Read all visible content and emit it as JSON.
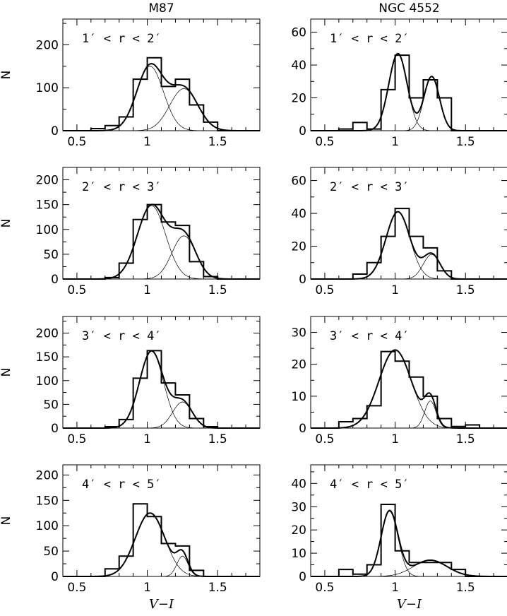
{
  "chart_data": [
    {
      "type": "histogram",
      "title": "M87",
      "annotation": "1′ < r < 2′",
      "xlabel": "",
      "ylabel": "N",
      "xlim": [
        0.4,
        1.8
      ],
      "ylim": [
        0,
        260
      ],
      "xticks": [
        0.5,
        1,
        1.5
      ],
      "xtick_labels": [
        "0.5",
        "1",
        "1.5"
      ],
      "yticks": [
        0,
        100,
        200
      ],
      "ytick_labels": [
        "0",
        "100",
        "200"
      ],
      "bin_edges": [
        0.6,
        0.7,
        0.8,
        0.9,
        1.0,
        1.1,
        1.2,
        1.3,
        1.4,
        1.5
      ],
      "counts": [
        5,
        12,
        32,
        120,
        170,
        103,
        120,
        60,
        20
      ],
      "components": [
        {
          "mu": 1.02,
          "sigma": 0.095,
          "amp": 150
        },
        {
          "mu": 1.26,
          "sigma": 0.1,
          "amp": 98
        }
      ]
    },
    {
      "type": "histogram",
      "title": "NGC 4552",
      "annotation": "1′ < r < 2′",
      "xlabel": "",
      "ylabel": "",
      "xlim": [
        0.4,
        1.8
      ],
      "ylim": [
        0,
        68
      ],
      "xticks": [
        0.5,
        1,
        1.5
      ],
      "xtick_labels": [
        "0.5",
        "1",
        "1.5"
      ],
      "yticks": [
        0,
        20,
        40,
        60
      ],
      "ytick_labels": [
        "0",
        "20",
        "40",
        "60"
      ],
      "bin_edges": [
        0.6,
        0.7,
        0.8,
        0.9,
        1.0,
        1.1,
        1.2,
        1.3,
        1.4
      ],
      "counts": [
        1,
        5,
        1,
        25,
        46,
        20,
        31,
        20
      ],
      "components": [
        {
          "mu": 1.02,
          "sigma": 0.065,
          "amp": 47
        },
        {
          "mu": 1.26,
          "sigma": 0.055,
          "amp": 33
        }
      ]
    },
    {
      "type": "histogram",
      "title": "",
      "annotation": "2′ < r < 3′",
      "xlabel": "",
      "ylabel": "N",
      "xlim": [
        0.4,
        1.8
      ],
      "ylim": [
        0,
        225
      ],
      "xticks": [
        0.5,
        1,
        1.5
      ],
      "xtick_labels": [
        "0.5",
        "1",
        "1.5"
      ],
      "yticks": [
        0,
        50,
        100,
        150,
        200
      ],
      "ytick_labels": [
        "0",
        "50",
        "100",
        "150",
        "200"
      ],
      "bin_edges": [
        0.7,
        0.8,
        0.9,
        1.0,
        1.1,
        1.2,
        1.3,
        1.4,
        1.5
      ],
      "counts": [
        3,
        32,
        120,
        150,
        115,
        108,
        35,
        5
      ],
      "components": [
        {
          "mu": 1.03,
          "sigma": 0.1,
          "amp": 148
        },
        {
          "mu": 1.26,
          "sigma": 0.085,
          "amp": 87
        }
      ]
    },
    {
      "type": "histogram",
      "title": "",
      "annotation": "2′ < r < 3′",
      "xlabel": "",
      "ylabel": "",
      "xlim": [
        0.4,
        1.8
      ],
      "ylim": [
        0,
        68
      ],
      "xticks": [
        0.5,
        1,
        1.5
      ],
      "xtick_labels": [
        "0.5",
        "1",
        "1.5"
      ],
      "yticks": [
        0,
        20,
        40,
        60
      ],
      "ytick_labels": [
        "0",
        "20",
        "40",
        "60"
      ],
      "bin_edges": [
        0.7,
        0.8,
        0.9,
        1.0,
        1.1,
        1.2,
        1.3,
        1.4
      ],
      "counts": [
        3,
        10,
        26,
        43,
        26,
        19,
        5
      ],
      "components": [
        {
          "mu": 1.02,
          "sigma": 0.085,
          "amp": 41
        },
        {
          "mu": 1.26,
          "sigma": 0.06,
          "amp": 15
        }
      ]
    },
    {
      "type": "histogram",
      "title": "",
      "annotation": "3′ < r < 4′",
      "xlabel": "",
      "ylabel": "N",
      "xlim": [
        0.4,
        1.8
      ],
      "ylim": [
        0,
        235
      ],
      "xticks": [
        0.5,
        1,
        1.5
      ],
      "xtick_labels": [
        "0.5",
        "1",
        "1.5"
      ],
      "yticks": [
        0,
        50,
        100,
        150,
        200
      ],
      "ytick_labels": [
        "0",
        "50",
        "100",
        "150",
        "200"
      ],
      "bin_edges": [
        0.7,
        0.8,
        0.9,
        1.0,
        1.1,
        1.2,
        1.3,
        1.4,
        1.5
      ],
      "counts": [
        3,
        18,
        105,
        163,
        95,
        70,
        20,
        3
      ],
      "components": [
        {
          "mu": 1.03,
          "sigma": 0.085,
          "amp": 162
        },
        {
          "mu": 1.25,
          "sigma": 0.07,
          "amp": 55
        }
      ]
    },
    {
      "type": "histogram",
      "title": "",
      "annotation": "3′ < r < 4′",
      "xlabel": "",
      "ylabel": "",
      "xlim": [
        0.4,
        1.8
      ],
      "ylim": [
        0,
        35
      ],
      "xticks": [
        0.5,
        1,
        1.5
      ],
      "xtick_labels": [
        "0.5",
        "1",
        "1.5"
      ],
      "yticks": [
        0,
        10,
        20,
        30
      ],
      "ytick_labels": [
        "0",
        "10",
        "20",
        "30"
      ],
      "bin_edges": [
        0.6,
        0.7,
        0.8,
        0.9,
        1.0,
        1.1,
        1.2,
        1.3,
        1.4,
        1.5,
        1.6
      ],
      "counts": [
        2,
        3,
        7,
        24,
        21,
        16,
        10,
        3,
        0.5,
        1
      ],
      "components": [
        {
          "mu": 1.0,
          "sigma": 0.115,
          "amp": 24.5
        },
        {
          "mu": 1.25,
          "sigma": 0.04,
          "amp": 8.5
        }
      ]
    },
    {
      "type": "histogram",
      "title": "",
      "annotation": "4′ < r < 5′",
      "xlabel": "V−I",
      "ylabel": "N",
      "xlim": [
        0.4,
        1.8
      ],
      "ylim": [
        0,
        220
      ],
      "xticks": [
        0.5,
        1,
        1.5
      ],
      "xtick_labels": [
        "0.5",
        "1",
        "1.5"
      ],
      "yticks": [
        0,
        50,
        100,
        150,
        200
      ],
      "ytick_labels": [
        "0",
        "50",
        "100",
        "150",
        "200"
      ],
      "bin_edges": [
        0.7,
        0.8,
        0.9,
        1.0,
        1.1,
        1.2,
        1.3,
        1.4
      ],
      "counts": [
        15,
        40,
        143,
        118,
        65,
        60,
        12
      ],
      "components": [
        {
          "mu": 1.02,
          "sigma": 0.105,
          "amp": 125
        },
        {
          "mu": 1.25,
          "sigma": 0.04,
          "amp": 40
        }
      ]
    },
    {
      "type": "histogram",
      "title": "",
      "annotation": "4′ < r < 5′",
      "xlabel": "V−I",
      "ylabel": "",
      "xlim": [
        0.4,
        1.8
      ],
      "ylim": [
        0,
        48
      ],
      "xticks": [
        0.5,
        1,
        1.5
      ],
      "xtick_labels": [
        "0.5",
        "1",
        "1.5"
      ],
      "yticks": [
        0,
        10,
        20,
        30,
        40
      ],
      "ytick_labels": [
        "0",
        "10",
        "20",
        "30",
        "40"
      ],
      "bin_edges": [
        0.6,
        0.7,
        0.8,
        0.9,
        1.0,
        1.1,
        1.2,
        1.3,
        1.4,
        1.5
      ],
      "counts": [
        3,
        1,
        5,
        31,
        11,
        6,
        6,
        6,
        3
      ],
      "components": [
        {
          "mu": 0.96,
          "sigma": 0.06,
          "amp": 28
        },
        {
          "mu": 1.25,
          "sigma": 0.12,
          "amp": 7
        }
      ]
    }
  ]
}
